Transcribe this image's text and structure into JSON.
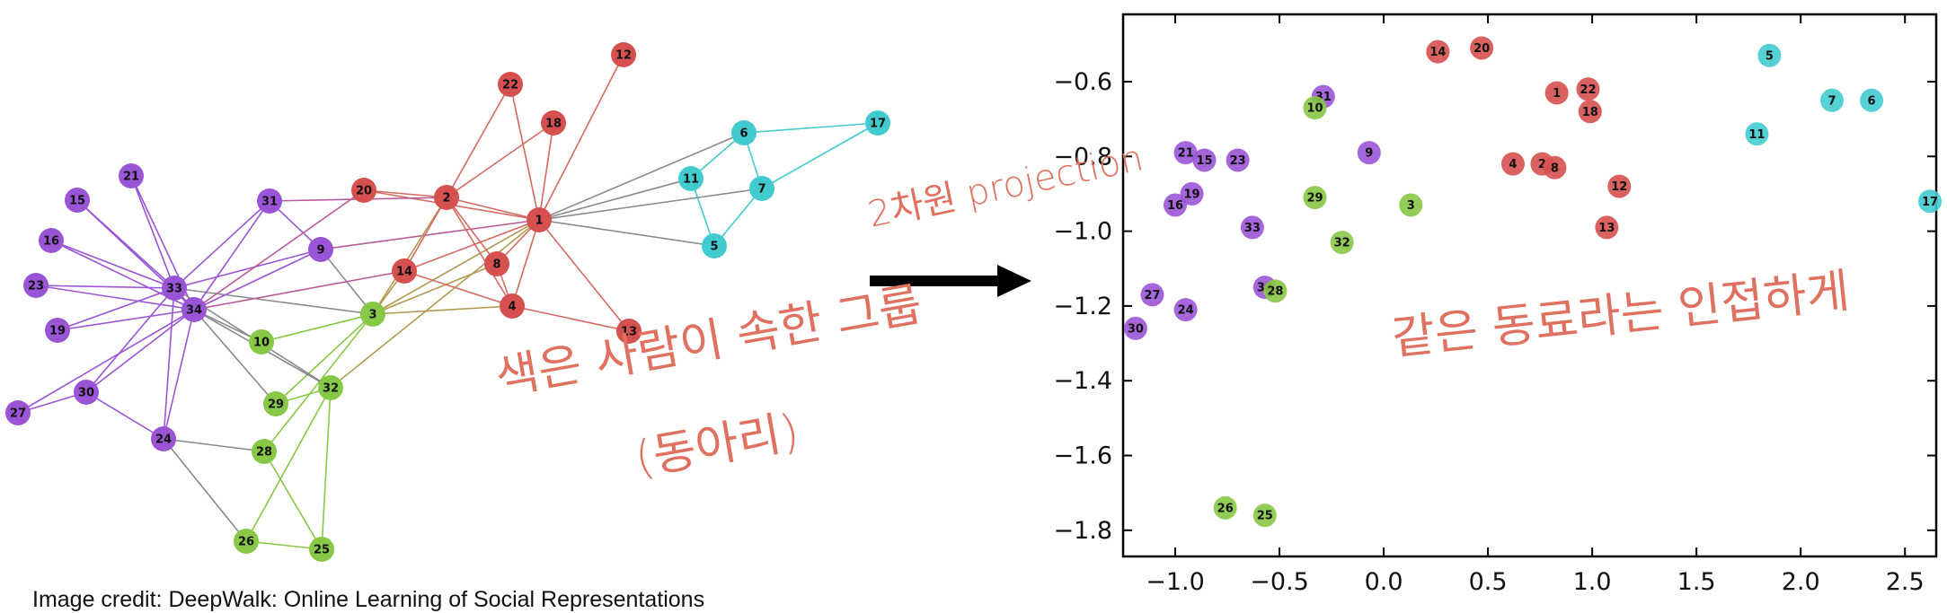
{
  "graph": {
    "colors": {
      "purple": "#9a55d6",
      "red": "#d5504f",
      "cyan": "#42cbcf",
      "green": "#87c846",
      "edge_gray": "#8a8a8a",
      "edge_purple": "#9a55d6",
      "edge_red": "#d46a60",
      "edge_cyan": "#42cbcf",
      "edge_green": "#87c846",
      "edge_olive": "#b29a50"
    },
    "nodes": [
      {
        "id": "1",
        "group": "red"
      },
      {
        "id": "2",
        "group": "red"
      },
      {
        "id": "3",
        "group": "green"
      },
      {
        "id": "4",
        "group": "red"
      },
      {
        "id": "5",
        "group": "cyan"
      },
      {
        "id": "6",
        "group": "cyan"
      },
      {
        "id": "7",
        "group": "cyan"
      },
      {
        "id": "8",
        "group": "red"
      },
      {
        "id": "9",
        "group": "purple"
      },
      {
        "id": "10",
        "group": "green"
      },
      {
        "id": "11",
        "group": "cyan"
      },
      {
        "id": "12",
        "group": "red"
      },
      {
        "id": "13",
        "group": "red"
      },
      {
        "id": "14",
        "group": "red"
      },
      {
        "id": "15",
        "group": "purple"
      },
      {
        "id": "16",
        "group": "purple"
      },
      {
        "id": "17",
        "group": "cyan"
      },
      {
        "id": "18",
        "group": "red"
      },
      {
        "id": "19",
        "group": "purple"
      },
      {
        "id": "20",
        "group": "red"
      },
      {
        "id": "21",
        "group": "purple"
      },
      {
        "id": "22",
        "group": "red"
      },
      {
        "id": "23",
        "group": "purple"
      },
      {
        "id": "24",
        "group": "purple"
      },
      {
        "id": "25",
        "group": "green"
      },
      {
        "id": "26",
        "group": "green"
      },
      {
        "id": "27",
        "group": "purple"
      },
      {
        "id": "28",
        "group": "green"
      },
      {
        "id": "29",
        "group": "green"
      },
      {
        "id": "30",
        "group": "purple"
      },
      {
        "id": "31",
        "group": "purple"
      },
      {
        "id": "32",
        "group": "green"
      },
      {
        "id": "33",
        "group": "purple"
      },
      {
        "id": "34",
        "group": "purple"
      }
    ],
    "edges": [
      [
        "1",
        "2"
      ],
      [
        "1",
        "3"
      ],
      [
        "1",
        "4"
      ],
      [
        "1",
        "5"
      ],
      [
        "1",
        "6"
      ],
      [
        "1",
        "7"
      ],
      [
        "1",
        "8"
      ],
      [
        "1",
        "9"
      ],
      [
        "1",
        "11"
      ],
      [
        "1",
        "12"
      ],
      [
        "1",
        "13"
      ],
      [
        "1",
        "14"
      ],
      [
        "1",
        "18"
      ],
      [
        "1",
        "20"
      ],
      [
        "1",
        "22"
      ],
      [
        "1",
        "32"
      ],
      [
        "2",
        "3"
      ],
      [
        "2",
        "4"
      ],
      [
        "2",
        "8"
      ],
      [
        "2",
        "14"
      ],
      [
        "2",
        "18"
      ],
      [
        "2",
        "20"
      ],
      [
        "2",
        "22"
      ],
      [
        "2",
        "31"
      ],
      [
        "3",
        "4"
      ],
      [
        "3",
        "8"
      ],
      [
        "3",
        "9"
      ],
      [
        "3",
        "10"
      ],
      [
        "3",
        "14"
      ],
      [
        "3",
        "28"
      ],
      [
        "3",
        "29"
      ],
      [
        "3",
        "33"
      ],
      [
        "4",
        "8"
      ],
      [
        "4",
        "13"
      ],
      [
        "4",
        "14"
      ],
      [
        "5",
        "7"
      ],
      [
        "5",
        "11"
      ],
      [
        "6",
        "7"
      ],
      [
        "6",
        "11"
      ],
      [
        "6",
        "17"
      ],
      [
        "7",
        "17"
      ],
      [
        "9",
        "31"
      ],
      [
        "9",
        "33"
      ],
      [
        "9",
        "34"
      ],
      [
        "10",
        "34"
      ],
      [
        "14",
        "34"
      ],
      [
        "15",
        "33"
      ],
      [
        "15",
        "34"
      ],
      [
        "16",
        "33"
      ],
      [
        "16",
        "34"
      ],
      [
        "19",
        "33"
      ],
      [
        "19",
        "34"
      ],
      [
        "20",
        "34"
      ],
      [
        "21",
        "33"
      ],
      [
        "21",
        "34"
      ],
      [
        "23",
        "33"
      ],
      [
        "23",
        "34"
      ],
      [
        "24",
        "26"
      ],
      [
        "24",
        "28"
      ],
      [
        "24",
        "30"
      ],
      [
        "24",
        "33"
      ],
      [
        "24",
        "34"
      ],
      [
        "25",
        "26"
      ],
      [
        "25",
        "28"
      ],
      [
        "25",
        "32"
      ],
      [
        "26",
        "32"
      ],
      [
        "27",
        "30"
      ],
      [
        "27",
        "34"
      ],
      [
        "29",
        "32"
      ],
      [
        "29",
        "34"
      ],
      [
        "30",
        "33"
      ],
      [
        "30",
        "34"
      ],
      [
        "31",
        "33"
      ],
      [
        "31",
        "34"
      ],
      [
        "32",
        "33"
      ],
      [
        "32",
        "34"
      ],
      [
        "33",
        "34"
      ]
    ]
  },
  "scatter": {
    "x_ticks": [
      "−1.0",
      "−0.5",
      "0.0",
      "0.5",
      "1.0",
      "1.5",
      "2.0",
      "2.5"
    ],
    "x_tick_values": [
      -1.0,
      -0.5,
      0.0,
      0.5,
      1.0,
      1.5,
      2.0,
      2.5
    ],
    "y_ticks": [
      "−0.6",
      "−0.8",
      "−1.0",
      "−1.2",
      "−1.4",
      "−1.6",
      "−1.8"
    ],
    "y_tick_values": [
      -0.6,
      -0.8,
      -1.0,
      -1.2,
      -1.4,
      -1.6,
      -1.8
    ],
    "xlim": [
      -1.25,
      2.65
    ],
    "ylim": [
      -1.87,
      -0.42
    ],
    "points": [
      {
        "id": "14",
        "x": 0.26,
        "y": -0.52,
        "group": "red"
      },
      {
        "id": "20",
        "x": 0.47,
        "y": -0.51,
        "group": "red"
      },
      {
        "id": "5",
        "x": 1.85,
        "y": -0.53,
        "group": "cyan"
      },
      {
        "id": "31",
        "x": -0.29,
        "y": -0.64,
        "group": "purple"
      },
      {
        "id": "10",
        "x": -0.33,
        "y": -0.67,
        "group": "green"
      },
      {
        "id": "1",
        "x": 0.83,
        "y": -0.63,
        "group": "red"
      },
      {
        "id": "22",
        "x": 0.98,
        "y": -0.62,
        "group": "red"
      },
      {
        "id": "7",
        "x": 2.15,
        "y": -0.65,
        "group": "cyan"
      },
      {
        "id": "6",
        "x": 2.34,
        "y": -0.65,
        "group": "cyan"
      },
      {
        "id": "18",
        "x": 0.99,
        "y": -0.68,
        "group": "red"
      },
      {
        "id": "11",
        "x": 1.79,
        "y": -0.74,
        "group": "cyan"
      },
      {
        "id": "21",
        "x": -0.95,
        "y": -0.79,
        "group": "purple"
      },
      {
        "id": "15",
        "x": -0.86,
        "y": -0.81,
        "group": "purple"
      },
      {
        "id": "23",
        "x": -0.7,
        "y": -0.81,
        "group": "purple"
      },
      {
        "id": "9",
        "x": -0.07,
        "y": -0.79,
        "group": "purple"
      },
      {
        "id": "4",
        "x": 0.62,
        "y": -0.82,
        "group": "red"
      },
      {
        "id": "2",
        "x": 0.76,
        "y": -0.82,
        "group": "red"
      },
      {
        "id": "8",
        "x": 0.82,
        "y": -0.83,
        "group": "red"
      },
      {
        "id": "12",
        "x": 1.13,
        "y": -0.88,
        "group": "red"
      },
      {
        "id": "19",
        "x": -0.92,
        "y": -0.9,
        "group": "purple"
      },
      {
        "id": "16",
        "x": -1.0,
        "y": -0.93,
        "group": "purple"
      },
      {
        "id": "29",
        "x": -0.33,
        "y": -0.91,
        "group": "green"
      },
      {
        "id": "3",
        "x": 0.13,
        "y": -0.93,
        "group": "green"
      },
      {
        "id": "17",
        "x": 2.62,
        "y": -0.92,
        "group": "cyan"
      },
      {
        "id": "33",
        "x": -0.63,
        "y": -0.99,
        "group": "purple"
      },
      {
        "id": "13",
        "x": 1.07,
        "y": -0.99,
        "group": "red"
      },
      {
        "id": "32",
        "x": -0.2,
        "y": -1.03,
        "group": "green"
      },
      {
        "id": "34",
        "x": -0.57,
        "y": -1.15,
        "group": "purple"
      },
      {
        "id": "28",
        "x": -0.52,
        "y": -1.16,
        "group": "green"
      },
      {
        "id": "27",
        "x": -1.11,
        "y": -1.17,
        "group": "purple"
      },
      {
        "id": "24",
        "x": -0.95,
        "y": -1.21,
        "group": "purple"
      },
      {
        "id": "30",
        "x": -1.19,
        "y": -1.26,
        "group": "purple"
      },
      {
        "id": "26",
        "x": -0.76,
        "y": -1.74,
        "group": "green"
      },
      {
        "id": "25",
        "x": -0.57,
        "y": -1.76,
        "group": "green"
      }
    ]
  },
  "annotations": {
    "projection": "2차원 projection",
    "color_group": "색은 사람이 속한 그룹",
    "club": "(동아리)",
    "same_group": "같은 동료라는 인접하게"
  },
  "credit": "Image credit: DeepWalk: Online Learning of Social Representations"
}
